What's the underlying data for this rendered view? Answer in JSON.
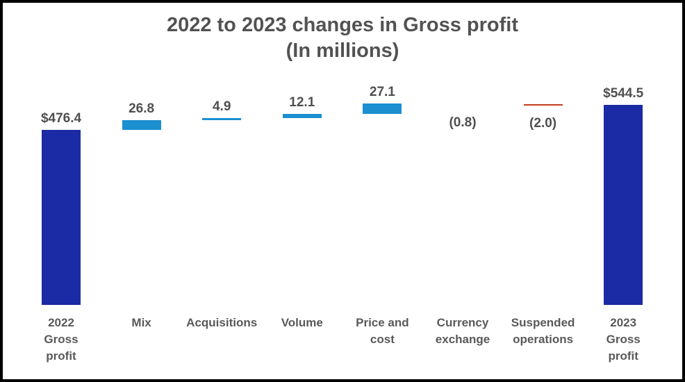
{
  "title": {
    "line1": "2022 to 2023 changes in Gross profit",
    "line2": "(In millions)"
  },
  "colors": {
    "background": "#ffffff",
    "frame_border": "#000000",
    "total_bar": "#1b2aa5",
    "increase_bar": "#1b8fd0",
    "decrease_bar": "#c43b1a",
    "title_text": "#525252",
    "value_text": "#4f4f4f",
    "axis_text": "#595959"
  },
  "chart_data": {
    "type": "bar",
    "subtype": "waterfall",
    "title": "2022 to 2023 changes in Gross profit",
    "subtitle": "(In millions)",
    "unit": "millions USD",
    "legend": false,
    "grid": false,
    "y_axis_visible": false,
    "x_axis_line_visible": false,
    "ylim": [
      0,
      600
    ],
    "categories": [
      "2022 Gross profit",
      "Mix",
      "Acquisitions",
      "Volume",
      "Price and cost",
      "Currency exchange",
      "Suspended operations",
      "2023 Gross profit"
    ],
    "bars": [
      {
        "category": "2022 Gross profit",
        "axis_lines": [
          "2022",
          "Gross",
          "profit"
        ],
        "kind": "total",
        "value": 476.4,
        "display_value": "$476.4",
        "cumulative_start": 0,
        "cumulative_end": 476.4
      },
      {
        "category": "Mix",
        "axis_lines": [
          "Mix"
        ],
        "kind": "increase",
        "value": 26.8,
        "display_value": "26.8",
        "cumulative_start": 476.4,
        "cumulative_end": 503.2
      },
      {
        "category": "Acquisitions",
        "axis_lines": [
          "Acquisitions"
        ],
        "kind": "increase",
        "value": 4.9,
        "display_value": "4.9",
        "cumulative_start": 503.2,
        "cumulative_end": 508.1
      },
      {
        "category": "Volume",
        "axis_lines": [
          "Volume"
        ],
        "kind": "increase",
        "value": 12.1,
        "display_value": "12.1",
        "cumulative_start": 508.1,
        "cumulative_end": 520.2
      },
      {
        "category": "Price and cost",
        "axis_lines": [
          "Price and",
          "cost"
        ],
        "kind": "increase",
        "value": 27.1,
        "display_value": "27.1",
        "cumulative_start": 520.2,
        "cumulative_end": 547.3
      },
      {
        "category": "Currency exchange",
        "axis_lines": [
          "Currency",
          "exchange"
        ],
        "kind": "decrease",
        "value": -0.8,
        "display_value": "(0.8)",
        "cumulative_start": 547.3,
        "cumulative_end": 546.5
      },
      {
        "category": "Suspended operations",
        "axis_lines": [
          "Suspended",
          "operations"
        ],
        "kind": "decrease",
        "value": -2.0,
        "display_value": "(2.0)",
        "cumulative_start": 546.5,
        "cumulative_end": 544.5
      },
      {
        "category": "2023 Gross profit",
        "axis_lines": [
          "2023",
          "Gross",
          "profit"
        ],
        "kind": "total",
        "value": 544.5,
        "display_value": "$544.5",
        "cumulative_start": 0,
        "cumulative_end": 544.5
      }
    ]
  }
}
